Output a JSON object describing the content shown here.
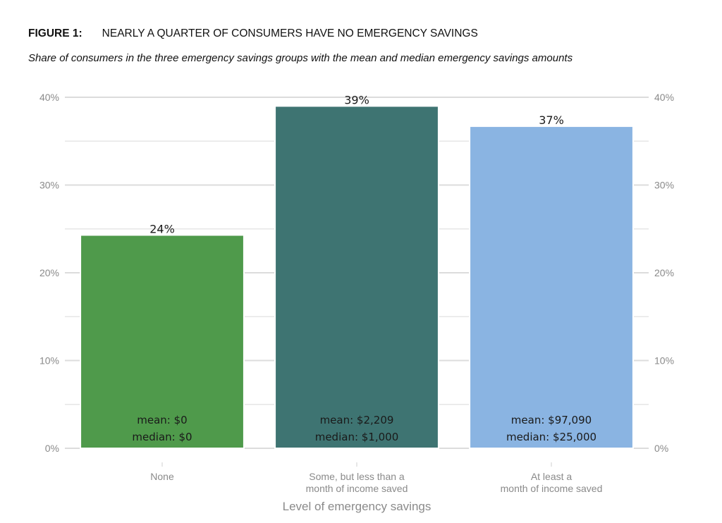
{
  "figure": {
    "label": "FIGURE 1:",
    "title": "NEARLY A QUARTER OF CONSUMERS HAVE NO EMERGENCY SAVINGS",
    "subtitle": "Share of consumers in the three emergency savings groups with the mean and median emergency savings amounts"
  },
  "chart_data": {
    "type": "bar",
    "title": "NEARLY A QUARTER OF CONSUMERS HAVE NO EMERGENCY SAVINGS",
    "subtitle": "Share of consumers in the three emergency savings groups with the mean and median emergency savings amounts",
    "xlabel": "Level of emergency savings",
    "ylabel": "",
    "ylim": [
      0,
      40
    ],
    "yticks": [
      0,
      10,
      20,
      30,
      40
    ],
    "ytick_labels": [
      "0%",
      "10%",
      "20%",
      "30%",
      "40%"
    ],
    "y_axis_sides": "left and right",
    "grid": true,
    "categories": [
      [
        "None"
      ],
      [
        "Some, but less than a",
        "month of income saved"
      ],
      [
        "At least a",
        "month of income saved"
      ]
    ],
    "values": [
      24.3,
      39.0,
      36.7
    ],
    "value_labels": [
      "24%",
      "39%",
      "37%"
    ],
    "mean_labels": [
      "mean: $0",
      "mean: $2,209",
      "mean: $97,090"
    ],
    "median_labels": [
      "median: $0",
      "median: $1,000",
      "median: $25,000"
    ],
    "colors": [
      "#4f9a4b",
      "#3e7472",
      "#8ab4e2"
    ]
  }
}
